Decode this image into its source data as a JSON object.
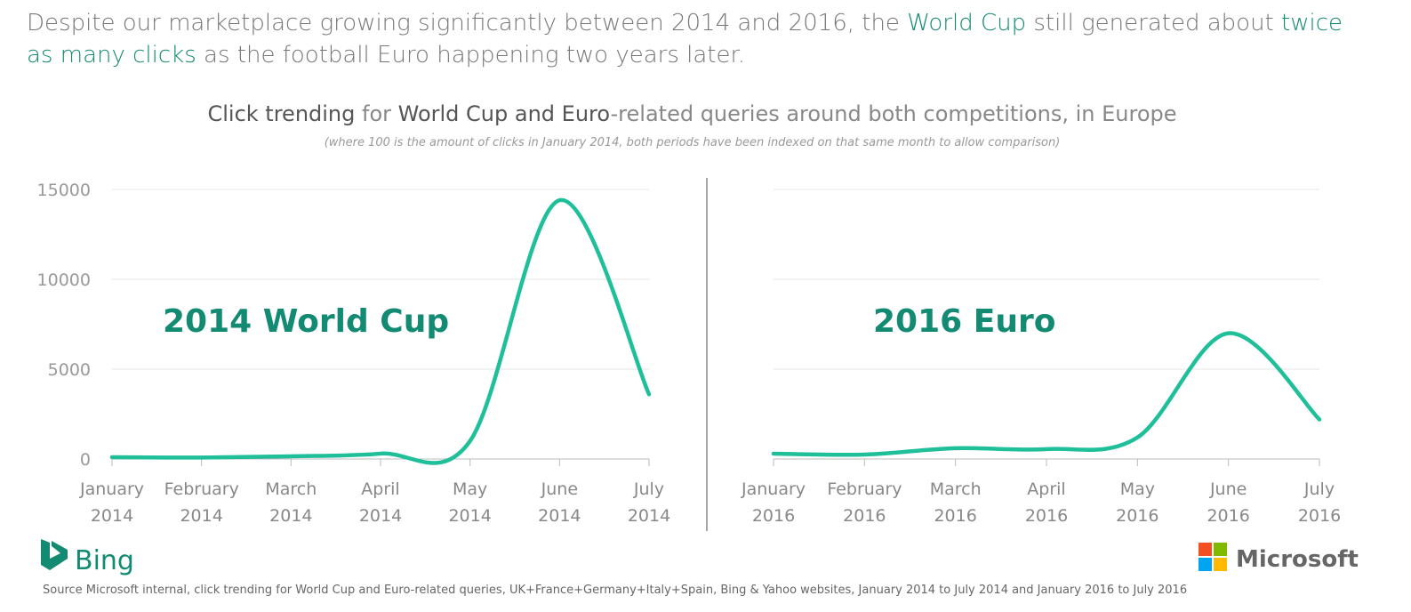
{
  "headline": [
    {
      "text": "Despite our marketplace growing significantly between 2014 and 2016, the ",
      "emphasis": false
    },
    {
      "text": "World Cup",
      "emphasis": true
    },
    {
      "text": " still generated about ",
      "emphasis": false
    },
    {
      "text": "twice as many clicks",
      "emphasis": true
    },
    {
      "text": " as the football Euro happening two years later.",
      "emphasis": false
    }
  ],
  "chart_title": [
    {
      "text": "Click trending",
      "emphasis": true
    },
    {
      "text": " for ",
      "emphasis": false
    },
    {
      "text": "World Cup and Euro",
      "emphasis": true
    },
    {
      "text": "-related queries around both competitions, in Europe",
      "emphasis": false
    }
  ],
  "chart_subtitle": "(where 100 is the amount of clicks in January 2014, both periods have been indexed on that same month to allow comparison)",
  "chart_data": [
    {
      "type": "line",
      "annotation": "2014 World Cup",
      "categories": [
        "January 2014",
        "February 2014",
        "March 2014",
        "April 2014",
        "May 2014",
        "June 2014",
        "July 2014"
      ],
      "values": [
        100,
        80,
        150,
        300,
        1000,
        14400,
        3600
      ],
      "color": "#1fbf9a",
      "ylim": [
        0,
        15000
      ],
      "yticks": [
        0,
        5000,
        10000,
        15000
      ],
      "ytick_labels": true,
      "grid": true
    },
    {
      "type": "line",
      "annotation": "2016 Euro",
      "categories": [
        "January 2016",
        "February 2016",
        "March 2016",
        "April 2016",
        "May 2016",
        "June 2016",
        "July 2016"
      ],
      "values": [
        300,
        250,
        600,
        550,
        1200,
        7000,
        2200
      ],
      "color": "#1fbf9a",
      "ylim": [
        0,
        15000
      ],
      "yticks": [
        0,
        5000,
        10000,
        15000
      ],
      "ytick_labels": false,
      "grid": true
    }
  ],
  "logos": {
    "left": "Bing",
    "right": "Microsoft"
  },
  "source": "Source Microsoft internal, click trending for World Cup and Euro-related queries, UK+France+Germany+Italy+Spain, Bing & Yahoo websites, January 2014 to July 2014 and January 2016 to July 2016"
}
